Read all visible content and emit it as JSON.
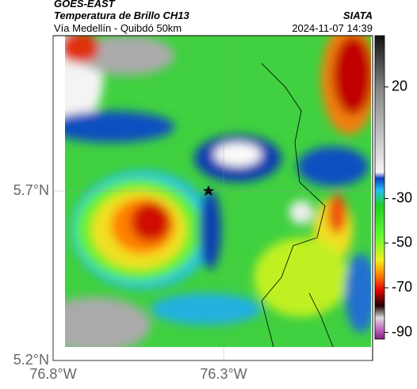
{
  "header": {
    "title": "GOES-EAST",
    "subtitle": "Temperatura de Brillo CH13",
    "route": "Vía Medellín - Quibdó 50km",
    "source": "SIATA",
    "timestamp": "2024-11-07 14:39"
  },
  "map": {
    "xlim": [
      -76.8,
      -75.863
    ],
    "ylim": [
      5.2,
      6.158
    ],
    "xticks": [
      {
        "value": -76.8,
        "label": "76.8°W"
      },
      {
        "value": -76.3,
        "label": "76.3°W"
      }
    ],
    "yticks": [
      {
        "value": 5.7,
        "label": "5.7°N"
      },
      {
        "value": 5.2,
        "label": "5.2°N"
      }
    ]
  },
  "colorbar": {
    "clim": [
      43,
      -93
    ],
    "ticks": [
      20,
      -30,
      -50,
      -70,
      -90
    ]
  }
}
